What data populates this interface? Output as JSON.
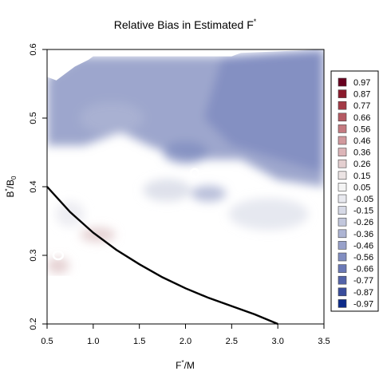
{
  "chart_data": {
    "type": "heatmap",
    "title_main": "Relative Bias in Estimated F",
    "title_sup": "*",
    "xlabel_main": "F",
    "xlabel_sup": "*",
    "xlabel_tail": "/M",
    "ylabel_main": "B",
    "ylabel_sup": "*",
    "ylabel_mid": "/B",
    "ylabel_sub": "0",
    "xlim": [
      0.5,
      3.5
    ],
    "ylim": [
      0.2,
      0.6
    ],
    "x_ticks": [
      "0.5",
      "1.0",
      "1.5",
      "2.0",
      "2.5",
      "3.0",
      "3.5"
    ],
    "y_ticks": [
      "0.2",
      "0.3",
      "0.4",
      "0.5",
      "0.6"
    ],
    "legend_position": "right",
    "legend": [
      {
        "label": "0.97",
        "color": "#67001f"
      },
      {
        "label": "0.87",
        "color": "#8b1a2c"
      },
      {
        "label": "0.77",
        "color": "#a33a46"
      },
      {
        "label": "0.66",
        "color": "#b55a63"
      },
      {
        "label": "0.56",
        "color": "#c47a80"
      },
      {
        "label": "0.46",
        "color": "#d1999d"
      },
      {
        "label": "0.36",
        "color": "#dcb5b8"
      },
      {
        "label": "0.26",
        "color": "#e4cfd0"
      },
      {
        "label": "0.15",
        "color": "#ebe3e3"
      },
      {
        "label": "0.05",
        "color": "#f4f4f4"
      },
      {
        "label": "-0.05",
        "color": "#e8e9ef"
      },
      {
        "label": "-0.15",
        "color": "#d6d9e6"
      },
      {
        "label": "-0.26",
        "color": "#c2c7dc"
      },
      {
        "label": "-0.36",
        "color": "#adb4d3"
      },
      {
        "label": "-0.46",
        "color": "#98a1ca"
      },
      {
        "label": "-0.56",
        "color": "#828ec1"
      },
      {
        "label": "-0.66",
        "color": "#6b79b6"
      },
      {
        "label": "-0.77",
        "color": "#5363a9"
      },
      {
        "label": "-0.87",
        "color": "#3a4d9c"
      },
      {
        "label": "-0.97",
        "color": "#0d2b8a"
      }
    ],
    "reference_curve": {
      "x": [
        0.5,
        0.75,
        1.0,
        1.25,
        1.5,
        1.75,
        2.0,
        2.25,
        2.5,
        2.75,
        3.0
      ],
      "y": [
        0.4,
        0.363,
        0.333,
        0.308,
        0.287,
        0.268,
        0.252,
        0.238,
        0.226,
        0.214,
        0.2
      ]
    }
  }
}
